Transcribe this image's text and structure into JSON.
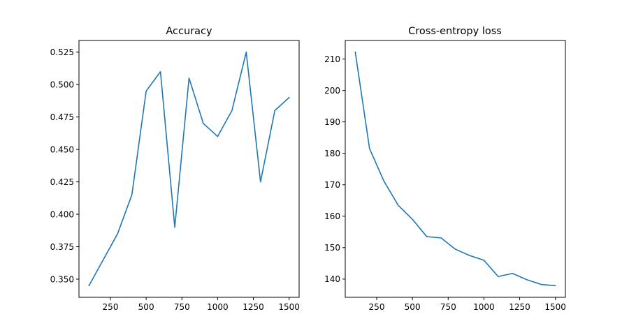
{
  "chart_data": [
    {
      "type": "line",
      "title": "Accuracy",
      "xlabel": "",
      "ylabel": "",
      "x": [
        100,
        200,
        300,
        400,
        500,
        600,
        700,
        800,
        900,
        1000,
        1100,
        1200,
        1300,
        1400,
        1500
      ],
      "series": [
        {
          "values": [
            0.345,
            0.365,
            0.385,
            0.415,
            0.495,
            0.51,
            0.39,
            0.505,
            0.47,
            0.46,
            0.48,
            0.525,
            0.425,
            0.48,
            0.49
          ]
        }
      ],
      "xlim": [
        30,
        1570
      ],
      "ylim": [
        0.336,
        0.534
      ],
      "xticks": [
        250,
        500,
        750,
        1000,
        1250,
        1500
      ],
      "xtick_labels": [
        "250",
        "500",
        "750",
        "1000",
        "1250",
        "1500"
      ],
      "yticks": [
        0.35,
        0.375,
        0.4,
        0.425,
        0.45,
        0.475,
        0.5,
        0.525
      ],
      "ytick_labels": [
        "0.350",
        "0.375",
        "0.400",
        "0.425",
        "0.450",
        "0.475",
        "0.500",
        "0.525"
      ],
      "grid": false,
      "color": "#1f77b4"
    },
    {
      "type": "line",
      "title": "Cross-entropy loss",
      "xlabel": "",
      "ylabel": "",
      "x": [
        100,
        200,
        300,
        400,
        500,
        600,
        700,
        800,
        900,
        1000,
        1100,
        1200,
        1300,
        1400,
        1500
      ],
      "series": [
        {
          "values": [
            212.2,
            181.5,
            171.2,
            163.5,
            159.0,
            153.5,
            153.1,
            149.5,
            147.5,
            146.0,
            140.8,
            141.8,
            139.8,
            138.3,
            137.9
          ]
        }
      ],
      "xlim": [
        30,
        1570
      ],
      "ylim": [
        134.2,
        215.9
      ],
      "xticks": [
        250,
        500,
        750,
        1000,
        1250,
        1500
      ],
      "xtick_labels": [
        "250",
        "500",
        "750",
        "1000",
        "1250",
        "1500"
      ],
      "yticks": [
        140,
        150,
        160,
        170,
        180,
        190,
        200,
        210
      ],
      "ytick_labels": [
        "140",
        "150",
        "160",
        "170",
        "180",
        "190",
        "200",
        "210"
      ],
      "grid": false,
      "color": "#1f77b4"
    }
  ]
}
